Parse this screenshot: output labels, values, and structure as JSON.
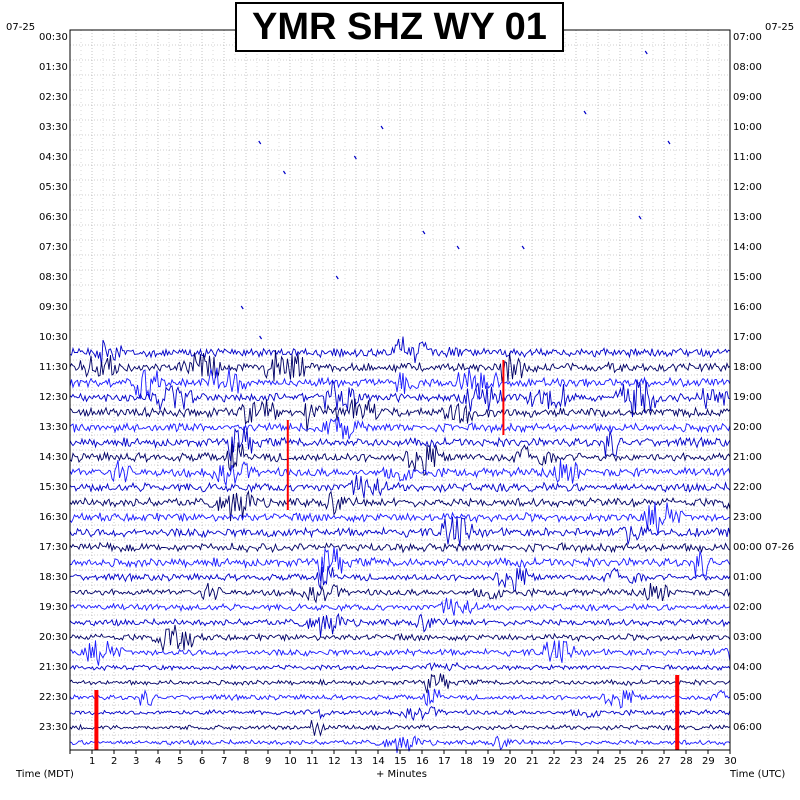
{
  "header": {
    "title": "YMR SHZ WY 01",
    "date_left": "07-25",
    "date_right": "07-25"
  },
  "footer": {
    "left_label": "Time (MDT)",
    "center_label": "+ Minutes",
    "right_label": "Time (UTC)"
  },
  "colors": {
    "trace_a": "#0000c8",
    "trace_b": "#000066",
    "trace_c": "#1a1aff",
    "event": "#ff0000",
    "grid": "#a0a0a0"
  },
  "chart_data": {
    "type": "helicorder",
    "title": "YMR SHZ WY 01",
    "xlabel": "+ Minutes",
    "xlim": [
      0,
      30
    ],
    "x_ticks": [
      "1",
      "2",
      "3",
      "4",
      "5",
      "6",
      "7",
      "8",
      "9",
      "10",
      "11",
      "12",
      "13",
      "14",
      "15",
      "16",
      "17",
      "18",
      "19",
      "20",
      "21",
      "22",
      "23",
      "24",
      "25",
      "26",
      "27",
      "28",
      "29",
      "30"
    ],
    "left_axis_label": "Time (MDT)",
    "right_axis_label": "Time (UTC)",
    "left_ticks": [
      "00:30",
      "01:30",
      "02:30",
      "03:30",
      "04:30",
      "05:30",
      "06:30",
      "07:30",
      "08:30",
      "09:30",
      "10:30",
      "11:30",
      "12:30",
      "13:30",
      "14:30",
      "15:30",
      "16:30",
      "17:30",
      "18:30",
      "19:30",
      "20:30",
      "21:30",
      "22:30",
      "23:30"
    ],
    "right_ticks": [
      "07:00",
      "08:00",
      "09:00",
      "10:00",
      "11:00",
      "12:00",
      "13:00",
      "14:00",
      "15:00",
      "16:00",
      "17:00",
      "18:00",
      "19:00",
      "20:00",
      "21:00",
      "22:00",
      "23:00",
      "00:00 07-26",
      "01:00",
      "02:00",
      "03:00",
      "04:00",
      "05:00",
      "06:00"
    ],
    "rows": 48,
    "active_from_row": 21,
    "event_markers": [
      {
        "minute": 1.2,
        "rows": [
          44,
          47
        ]
      },
      {
        "minute": 27.6,
        "rows": [
          43,
          47
        ]
      },
      {
        "minute": 19.7,
        "rows": [
          22,
          26
        ]
      },
      {
        "minute": 9.9,
        "rows": [
          26,
          31
        ]
      }
    ]
  }
}
